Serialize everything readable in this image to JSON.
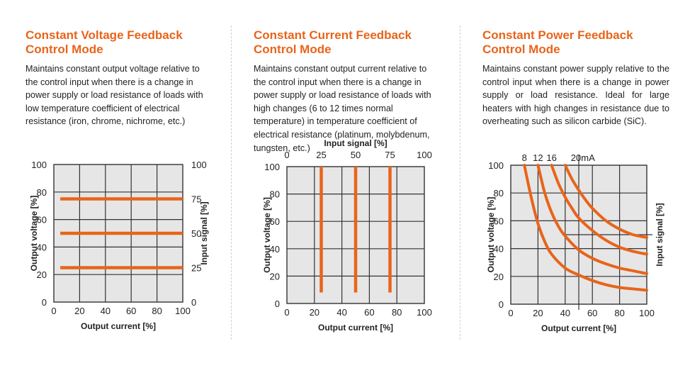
{
  "panels": [
    {
      "title": "Constant Voltage Feedback\nControl Mode",
      "description": "Maintains constant output voltage relative to the control input when there is a change in power supply or load resistance of loads with low temperature coefficient of electrical resistance (iron, chrome, nichrome, etc.)"
    },
    {
      "title": "Constant Current Feedback\nControl Mode",
      "description": "Maintains constant output current relative to the control input when there is a change in power supply or load resistance of loads with high changes (6 to 12 times normal temperature) in temperature coefficient of electrical resistance (platinum, molybdenum, tungsten, etc.)"
    },
    {
      "title": "Constant Power Feedback\nControl Mode",
      "description": "Maintains constant power supply relative to the control input when there is a change in power supply or load resistance. Ideal for large heaters with high changes in resistance due to overheating such as silicon carbide (SiC)."
    }
  ],
  "colors": {
    "accent": "#e8641a",
    "plot_bg": "#e6e6e6",
    "grid": "#333333"
  },
  "chart_data": [
    {
      "type": "line",
      "xlabel": "Output current [%]",
      "ylabel": "Output voltage [%]",
      "y2label": "Input signal [%]",
      "xlim": [
        0,
        100
      ],
      "ylim": [
        0,
        100
      ],
      "xticks": [
        "0",
        "20",
        "40",
        "60",
        "80",
        "100"
      ],
      "yticks": [
        "0",
        "20",
        "40",
        "60",
        "80",
        "100"
      ],
      "y2ticks": [
        "0",
        "25",
        "50",
        "75",
        "100"
      ],
      "grid": true,
      "series": [
        {
          "x": [
            5,
            100
          ],
          "y": [
            25,
            25
          ]
        },
        {
          "x": [
            5,
            100
          ],
          "y": [
            50,
            50
          ]
        },
        {
          "x": [
            5,
            100
          ],
          "y": [
            75,
            75
          ]
        }
      ]
    },
    {
      "type": "line",
      "xlabel": "Output current [%]",
      "ylabel": "Output voltage [%]",
      "x2label": "Input signal [%]",
      "xlim": [
        0,
        100
      ],
      "ylim": [
        0,
        100
      ],
      "xticks": [
        "0",
        "20",
        "40",
        "60",
        "80",
        "100"
      ],
      "yticks": [
        "0",
        "20",
        "40",
        "60",
        "80",
        "100"
      ],
      "x2ticks": [
        "0",
        "25",
        "50",
        "75",
        "100"
      ],
      "grid": true,
      "series": [
        {
          "x": [
            25,
            25
          ],
          "y": [
            8,
            100
          ]
        },
        {
          "x": [
            50,
            50
          ],
          "y": [
            8,
            100
          ]
        },
        {
          "x": [
            75,
            75
          ],
          "y": [
            8,
            100
          ]
        }
      ]
    },
    {
      "type": "line",
      "xlabel": "Output current [%]",
      "ylabel": "Output voltage [%]",
      "y2label": "Input signal [%]",
      "xlim": [
        0,
        100
      ],
      "ylim": [
        0,
        100
      ],
      "xticks": [
        "0",
        "20",
        "40",
        "60",
        "80",
        "100"
      ],
      "yticks": [
        "0",
        "20",
        "40",
        "60",
        "80",
        "100"
      ],
      "grid": true,
      "annotations": [
        "8",
        "12",
        "16",
        "20mA"
      ],
      "series": [
        {
          "name": "8",
          "x": [
            10,
            15,
            20,
            25,
            30,
            40,
            50,
            60,
            70,
            80,
            90,
            100
          ],
          "y": [
            100,
            77,
            58,
            45,
            36,
            26,
            21,
            17,
            14,
            12,
            11,
            10
          ]
        },
        {
          "name": "12",
          "x": [
            20,
            25,
            30,
            35,
            40,
            50,
            60,
            70,
            80,
            90,
            100
          ],
          "y": [
            100,
            80,
            66,
            56,
            49,
            39,
            33,
            29,
            26,
            24,
            22
          ]
        },
        {
          "name": "16",
          "x": [
            30,
            35,
            40,
            45,
            50,
            60,
            70,
            80,
            90,
            100
          ],
          "y": [
            100,
            87,
            77,
            69,
            62,
            53,
            46,
            41,
            38,
            36
          ]
        },
        {
          "name": "20mA",
          "x": [
            40,
            45,
            50,
            55,
            60,
            70,
            80,
            90,
            100
          ],
          "y": [
            100,
            90,
            82,
            75,
            69,
            60,
            54,
            50,
            48
          ]
        }
      ]
    }
  ]
}
